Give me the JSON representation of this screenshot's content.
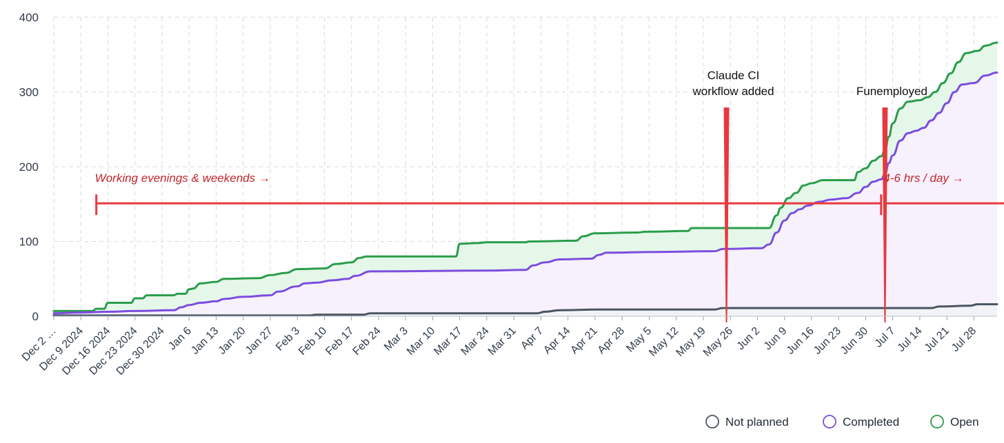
{
  "chart_data": {
    "type": "area",
    "title": "",
    "xlabel": "",
    "ylabel": "",
    "ylim": [
      0,
      400
    ],
    "y_ticks": [
      0,
      100,
      200,
      300,
      400
    ],
    "grid": true,
    "legend_position": "bottom-right",
    "x_start": "2024-12-02",
    "x_end": "2025-08-03",
    "x_ticks": [
      {
        "date": "2024-12-02",
        "label": "Dec 2 …"
      },
      {
        "date": "2024-12-09",
        "label": "Dec 9 2024"
      },
      {
        "date": "2024-12-16",
        "label": "Dec 16 2024"
      },
      {
        "date": "2024-12-23",
        "label": "Dec 23 2024"
      },
      {
        "date": "2024-12-30",
        "label": "Dec 30 2024"
      },
      {
        "date": "2025-01-06",
        "label": "Jan 6"
      },
      {
        "date": "2025-01-13",
        "label": "Jan 13"
      },
      {
        "date": "2025-01-20",
        "label": "Jan 20"
      },
      {
        "date": "2025-01-27",
        "label": "Jan 27"
      },
      {
        "date": "2025-02-03",
        "label": "Feb 3"
      },
      {
        "date": "2025-02-10",
        "label": "Feb 10"
      },
      {
        "date": "2025-02-17",
        "label": "Feb 17"
      },
      {
        "date": "2025-02-24",
        "label": "Feb 24"
      },
      {
        "date": "2025-03-03",
        "label": "Mar 3"
      },
      {
        "date": "2025-03-10",
        "label": "Mar 10"
      },
      {
        "date": "2025-03-17",
        "label": "Mar 17"
      },
      {
        "date": "2025-03-24",
        "label": "Mar 24"
      },
      {
        "date": "2025-03-31",
        "label": "Mar 31"
      },
      {
        "date": "2025-04-07",
        "label": "Apr 7"
      },
      {
        "date": "2025-04-14",
        "label": "Apr 14"
      },
      {
        "date": "2025-04-21",
        "label": "Apr 21"
      },
      {
        "date": "2025-04-28",
        "label": "Apr 28"
      },
      {
        "date": "2025-05-05",
        "label": "May 5"
      },
      {
        "date": "2025-05-12",
        "label": "May 12"
      },
      {
        "date": "2025-05-19",
        "label": "May 19"
      },
      {
        "date": "2025-05-26",
        "label": "May 26"
      },
      {
        "date": "2025-06-02",
        "label": "Jun 2"
      },
      {
        "date": "2025-06-09",
        "label": "Jun 9"
      },
      {
        "date": "2025-06-16",
        "label": "Jun 16"
      },
      {
        "date": "2025-06-23",
        "label": "Jun 23"
      },
      {
        "date": "2025-06-30",
        "label": "Jun 30"
      },
      {
        "date": "2025-07-07",
        "label": "Jul 7"
      },
      {
        "date": "2025-07-14",
        "label": "Jul 14"
      },
      {
        "date": "2025-07-21",
        "label": "Jul 21"
      },
      {
        "date": "2025-07-28",
        "label": "Jul 28"
      }
    ],
    "series": [
      {
        "name": "Open",
        "color": "#2a9d4a",
        "fill": "#e4f7e9",
        "points": [
          [
            "2024-12-02",
            7
          ],
          [
            "2024-12-12",
            7
          ],
          [
            "2024-12-13",
            10
          ],
          [
            "2024-12-15",
            10
          ],
          [
            "2024-12-16",
            18
          ],
          [
            "2024-12-22",
            18
          ],
          [
            "2024-12-23",
            24
          ],
          [
            "2024-12-25",
            24
          ],
          [
            "2024-12-26",
            28
          ],
          [
            "2025-01-02",
            28
          ],
          [
            "2025-01-03",
            30
          ],
          [
            "2025-01-05",
            30
          ],
          [
            "2025-01-06",
            36
          ],
          [
            "2025-01-07",
            37
          ],
          [
            "2025-01-09",
            44
          ],
          [
            "2025-01-13",
            46
          ],
          [
            "2025-01-15",
            50
          ],
          [
            "2025-01-24",
            51
          ],
          [
            "2025-01-27",
            55
          ],
          [
            "2025-01-31",
            58
          ],
          [
            "2025-02-03",
            63
          ],
          [
            "2025-02-10",
            64
          ],
          [
            "2025-02-13",
            70
          ],
          [
            "2025-02-17",
            72
          ],
          [
            "2025-02-19",
            78
          ],
          [
            "2025-02-21",
            80
          ],
          [
            "2025-03-16",
            80
          ],
          [
            "2025-03-17",
            97
          ],
          [
            "2025-03-22",
            98
          ],
          [
            "2025-03-24",
            99
          ],
          [
            "2025-04-03",
            99
          ],
          [
            "2025-04-04",
            100
          ],
          [
            "2025-04-16",
            101
          ],
          [
            "2025-04-18",
            107
          ],
          [
            "2025-04-21",
            111
          ],
          [
            "2025-05-02",
            112
          ],
          [
            "2025-05-04",
            113
          ],
          [
            "2025-05-15",
            114
          ],
          [
            "2025-05-16",
            118
          ],
          [
            "2025-06-05",
            118
          ],
          [
            "2025-06-07",
            135
          ],
          [
            "2025-06-08",
            145
          ],
          [
            "2025-06-10",
            158
          ],
          [
            "2025-06-12",
            165
          ],
          [
            "2025-06-14",
            175
          ],
          [
            "2025-06-16",
            178
          ],
          [
            "2025-06-19",
            182
          ],
          [
            "2025-06-27",
            182
          ],
          [
            "2025-06-28",
            193
          ],
          [
            "2025-06-30",
            198
          ],
          [
            "2025-07-02",
            208
          ],
          [
            "2025-07-04",
            214
          ],
          [
            "2025-07-05",
            222
          ],
          [
            "2025-07-06",
            240
          ],
          [
            "2025-07-07",
            258
          ],
          [
            "2025-07-09",
            278
          ],
          [
            "2025-07-11",
            287
          ],
          [
            "2025-07-14",
            289
          ],
          [
            "2025-07-16",
            293
          ],
          [
            "2025-07-18",
            300
          ],
          [
            "2025-07-20",
            312
          ],
          [
            "2025-07-22",
            325
          ],
          [
            "2025-07-24",
            340
          ],
          [
            "2025-07-26",
            352
          ],
          [
            "2025-07-29",
            355
          ],
          [
            "2025-07-31",
            362
          ],
          [
            "2025-08-03",
            366
          ]
        ]
      },
      {
        "name": "Completed",
        "color": "#7c4dde",
        "fill": "#f7f0fd",
        "points": [
          [
            "2024-12-02",
            4
          ],
          [
            "2024-12-09",
            5
          ],
          [
            "2024-12-16",
            6
          ],
          [
            "2024-12-23",
            7
          ],
          [
            "2025-01-02",
            8
          ],
          [
            "2025-01-04",
            12
          ],
          [
            "2025-01-06",
            15
          ],
          [
            "2025-01-09",
            18
          ],
          [
            "2025-01-13",
            20
          ],
          [
            "2025-01-15",
            23
          ],
          [
            "2025-01-20",
            26
          ],
          [
            "2025-01-27",
            28
          ],
          [
            "2025-01-29",
            33
          ],
          [
            "2025-02-03",
            40
          ],
          [
            "2025-02-05",
            44
          ],
          [
            "2025-02-08",
            45
          ],
          [
            "2025-02-12",
            48
          ],
          [
            "2025-02-16",
            50
          ],
          [
            "2025-02-18",
            54
          ],
          [
            "2025-02-22",
            60
          ],
          [
            "2025-03-24",
            61
          ],
          [
            "2025-04-03",
            62
          ],
          [
            "2025-04-05",
            68
          ],
          [
            "2025-04-08",
            72
          ],
          [
            "2025-04-12",
            76
          ],
          [
            "2025-04-20",
            77
          ],
          [
            "2025-04-22",
            82
          ],
          [
            "2025-04-24",
            85
          ],
          [
            "2025-05-07",
            86
          ],
          [
            "2025-05-22",
            87
          ],
          [
            "2025-05-24",
            90
          ],
          [
            "2025-06-03",
            91
          ],
          [
            "2025-06-05",
            96
          ],
          [
            "2025-06-07",
            112
          ],
          [
            "2025-06-09",
            128
          ],
          [
            "2025-06-11",
            138
          ],
          [
            "2025-06-13",
            143
          ],
          [
            "2025-06-15",
            148
          ],
          [
            "2025-06-18",
            153
          ],
          [
            "2025-06-21",
            156
          ],
          [
            "2025-06-25",
            158
          ],
          [
            "2025-06-28",
            165
          ],
          [
            "2025-06-30",
            173
          ],
          [
            "2025-07-02",
            180
          ],
          [
            "2025-07-04",
            183
          ],
          [
            "2025-07-05",
            190
          ],
          [
            "2025-07-06",
            205
          ],
          [
            "2025-07-07",
            215
          ],
          [
            "2025-07-09",
            235
          ],
          [
            "2025-07-11",
            245
          ],
          [
            "2025-07-13",
            248
          ],
          [
            "2025-07-15",
            252
          ],
          [
            "2025-07-17",
            262
          ],
          [
            "2025-07-19",
            272
          ],
          [
            "2025-07-21",
            285
          ],
          [
            "2025-07-23",
            300
          ],
          [
            "2025-07-25",
            310
          ],
          [
            "2025-07-28",
            312
          ],
          [
            "2025-07-31",
            322
          ],
          [
            "2025-08-03",
            326
          ]
        ]
      },
      {
        "name": "Not planned",
        "color": "#4a5562",
        "fill": "#f1f3f6",
        "points": [
          [
            "2024-12-02",
            1
          ],
          [
            "2025-02-06",
            1
          ],
          [
            "2025-02-08",
            2
          ],
          [
            "2025-02-20",
            2
          ],
          [
            "2025-02-22",
            4
          ],
          [
            "2025-04-06",
            4
          ],
          [
            "2025-04-08",
            6
          ],
          [
            "2025-04-12",
            8
          ],
          [
            "2025-04-22",
            9
          ],
          [
            "2025-05-22",
            9
          ],
          [
            "2025-05-24",
            11
          ],
          [
            "2025-07-17",
            11
          ],
          [
            "2025-07-19",
            13
          ],
          [
            "2025-07-27",
            14
          ],
          [
            "2025-07-29",
            16
          ],
          [
            "2025-08-03",
            16
          ]
        ]
      }
    ],
    "annotations": [
      {
        "kind": "vline",
        "date": "2025-05-25",
        "label_lines": [
          "Claude CI",
          "workflow added"
        ]
      },
      {
        "kind": "vline",
        "date": "2025-07-05",
        "label_lines": [
          "Funemployed"
        ]
      },
      {
        "kind": "span",
        "from": "2024-12-13",
        "to": "2025-07-04",
        "y": 151,
        "label": "Working evenings & weekends →"
      },
      {
        "kind": "span",
        "from": "2025-07-05",
        "to": "2025-08-03",
        "y": 151,
        "label": "4-6 hrs / day →"
      }
    ],
    "legend": [
      {
        "name": "Not planned",
        "color": "#4a5562"
      },
      {
        "name": "Completed",
        "color": "#7c4dde"
      },
      {
        "name": "Open",
        "color": "#2a9d4a"
      }
    ],
    "annotation_color": "#e8383e"
  }
}
